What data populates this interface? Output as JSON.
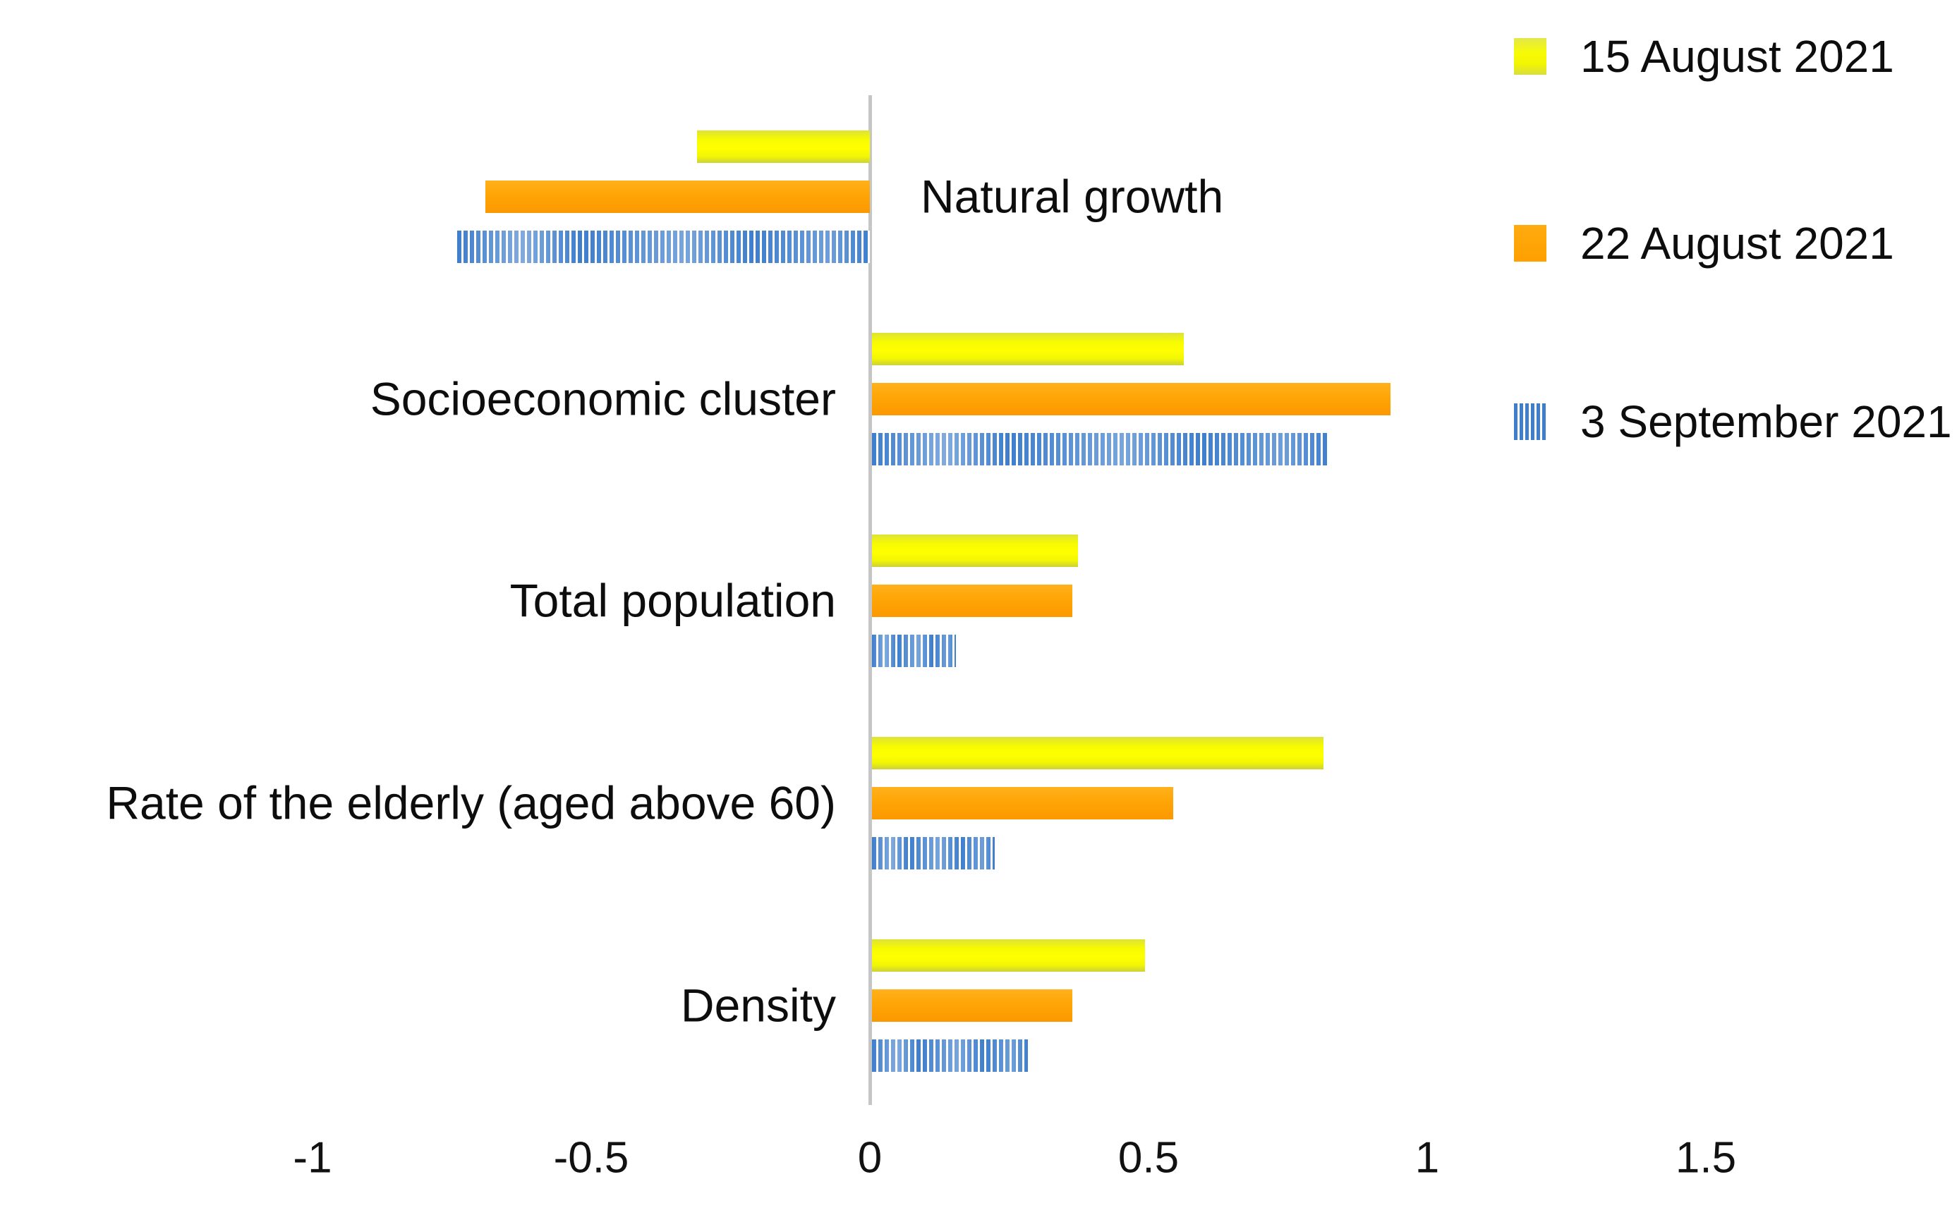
{
  "chart_data": {
    "type": "bar",
    "orientation": "horizontal",
    "title": "",
    "categories": [
      "Natural growth",
      "Socioeconomic cluster",
      "Total population",
      "Rate of the elderly (aged above 60)",
      "Density"
    ],
    "series": [
      {
        "name": "15 August 2021",
        "color": "#f2f600",
        "values": [
          -0.31,
          0.56,
          0.37,
          0.81,
          0.49
        ]
      },
      {
        "name": "22 August 2021",
        "color": "#ffa400",
        "values": [
          -0.69,
          0.93,
          0.36,
          0.54,
          0.36
        ]
      },
      {
        "name": "3 September 2021",
        "color": "#3e7ecd",
        "pattern": "vertical-stripes",
        "values": [
          -0.74,
          0.82,
          0.15,
          0.22,
          0.28
        ]
      }
    ],
    "x_ticks": [
      -1,
      -0.5,
      0,
      0.5,
      1,
      1.5
    ],
    "x_tick_labels": [
      "-1",
      "-0.5",
      "0",
      "0.5",
      "1",
      "1.5"
    ],
    "xlim": [
      -1.25,
      1.95
    ],
    "grid": false,
    "legend_position": "top-right",
    "axis_line_color": "#c6c6c6",
    "background_color": "#ffffff",
    "text_color": "#0d0d0d"
  }
}
